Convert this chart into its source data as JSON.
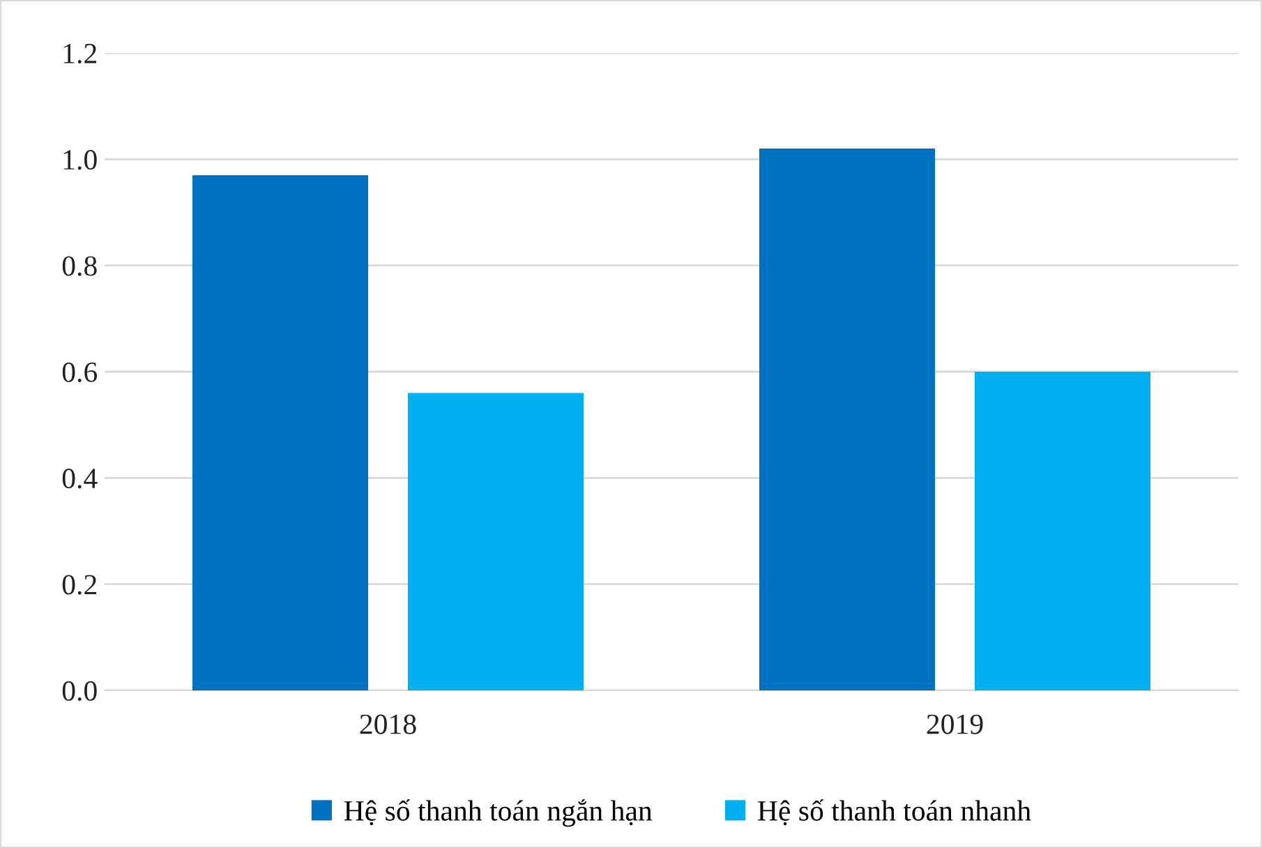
{
  "chart_data": {
    "type": "bar",
    "categories": [
      "2018",
      "2019"
    ],
    "series": [
      {
        "name": "Hệ số thanh toán ngắn hạn",
        "color": "#0070c0",
        "values": [
          0.97,
          1.02
        ]
      },
      {
        "name": "Hệ số thanh toán nhanh",
        "color": "#00b0f0",
        "values": [
          0.56,
          0.6
        ]
      }
    ],
    "ylim": [
      0,
      1.2
    ],
    "yticks": [
      {
        "value": 0,
        "label": "0.0"
      },
      {
        "value": 0.2,
        "label": "0.2"
      },
      {
        "value": 0.4,
        "label": "0.4"
      },
      {
        "value": 0.6,
        "label": "0.6"
      },
      {
        "value": 0.8,
        "label": "0.8"
      },
      {
        "value": 1.0,
        "label": "1.0"
      },
      {
        "value": 1.2,
        "label": "1.2"
      }
    ],
    "grid": "y",
    "legend": "bottom"
  }
}
